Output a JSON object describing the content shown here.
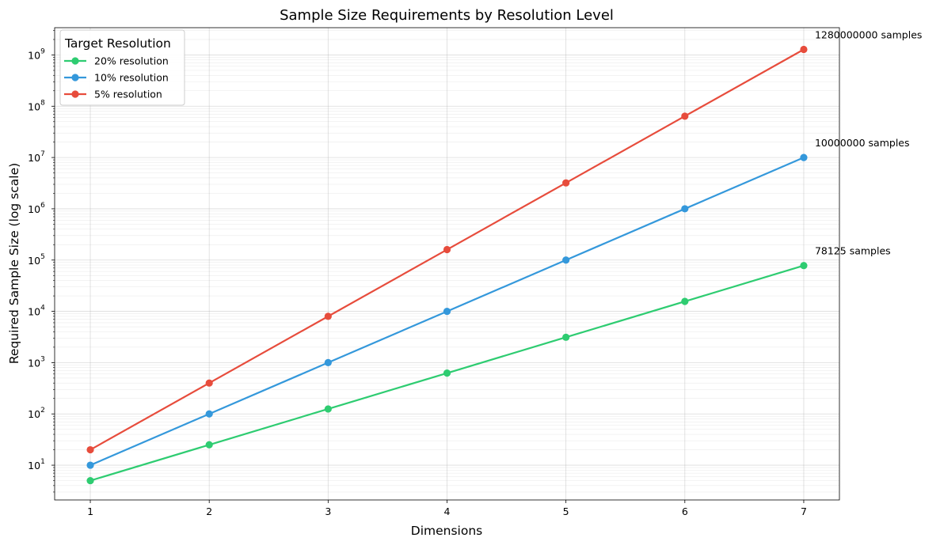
{
  "chart_data": {
    "type": "line",
    "title": "Sample Size Requirements by Resolution Level",
    "xlabel": "Dimensions",
    "ylabel": "Required Sample Size (log scale)",
    "x": [
      1,
      2,
      3,
      4,
      5,
      6,
      7
    ],
    "xlim": [
      0.7,
      7.3
    ],
    "ylim": [
      2.1,
      3400000000
    ],
    "yscale": "log",
    "x_ticks": [
      "1",
      "2",
      "3",
      "4",
      "5",
      "6",
      "7"
    ],
    "y_tick_exponents": [
      "1",
      "2",
      "3",
      "4",
      "5",
      "6",
      "7",
      "8",
      "9"
    ],
    "y_tick_base": "10",
    "grid": true,
    "legend": {
      "title": "Target Resolution",
      "placement": "top-left"
    },
    "series": [
      {
        "name": "20% resolution",
        "color": "#2ecc71",
        "values": [
          5,
          25,
          125,
          625,
          3125,
          15625,
          78125
        ]
      },
      {
        "name": "10% resolution",
        "color": "#3498db",
        "values": [
          10,
          100,
          1000,
          10000,
          100000,
          1000000,
          10000000
        ]
      },
      {
        "name": "5% resolution",
        "color": "#e74c3c",
        "values": [
          20,
          400,
          8000,
          160000,
          3200000,
          64000000,
          1280000000
        ]
      }
    ],
    "annotations": [
      {
        "series": 0,
        "text": "78125 samples"
      },
      {
        "series": 1,
        "text": "10000000 samples"
      },
      {
        "series": 2,
        "text": "1280000000 samples"
      }
    ]
  }
}
